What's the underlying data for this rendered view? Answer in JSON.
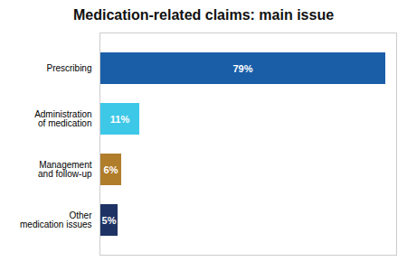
{
  "chart_data": {
    "type": "bar",
    "title": "Medication-related claims: main issue",
    "orientation": "horizontal",
    "categories": [
      "Prescribing",
      "Administration\nof medication",
      "Management\nand follow-up",
      "Other\nmedication issues"
    ],
    "values": [
      79,
      11,
      6,
      5
    ],
    "value_labels": [
      "79%",
      "11%",
      "6%",
      "5%"
    ],
    "data_labels": true,
    "colors": [
      "#1a5ea8",
      "#3ec8e8",
      "#b07d2a",
      "#1e3364"
    ],
    "xlim": [
      0,
      82
    ],
    "tick_labels": "y",
    "grid": false
  }
}
